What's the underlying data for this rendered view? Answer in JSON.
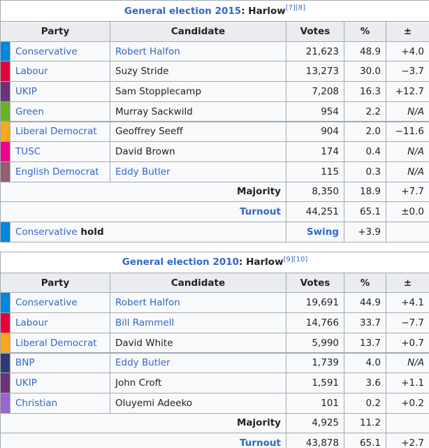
{
  "elections": [
    {
      "caption": {
        "link": "General election 2015",
        "place": ": Harlow",
        "refs": [
          "[7]",
          "[8]"
        ]
      },
      "headers": [
        "Party",
        "Candidate",
        "Votes",
        "%",
        "±"
      ],
      "rows": [
        {
          "party": "Conservative",
          "color": "#0087DC",
          "candidate": "Robert Halfon",
          "candidate_link": true,
          "votes": "21,623",
          "pct": "48.9",
          "change": "+4.0"
        },
        {
          "party": "Labour",
          "color": "#E4003B",
          "candidate": "Suzy Stride",
          "candidate_link": false,
          "votes": "13,273",
          "pct": "30.0",
          "change": "−3.7"
        },
        {
          "party": "UKIP",
          "color": "#6D3177",
          "candidate": "Sam Stopplecamp",
          "candidate_link": false,
          "votes": "7,208",
          "pct": "16.3",
          "change": "+12.7"
        },
        {
          "party": "Green",
          "color": "#6AB023",
          "candidate": "Murray Sackwild",
          "candidate_link": false,
          "votes": "954",
          "pct": "2.2",
          "change_na": "N/A"
        },
        {
          "party": "Liberal Democrat",
          "color": "#FAA61A",
          "candidate": "Geoffrey Seeff",
          "candidate_link": false,
          "votes": "904",
          "pct": "2.0",
          "change": "−11.6"
        },
        {
          "party": "TUSC",
          "color": "#EC008C",
          "candidate": "David Brown",
          "candidate_link": false,
          "votes": "174",
          "pct": "0.4",
          "change_na": "N/A"
        },
        {
          "party": "English Democrat",
          "color": "#915F6D",
          "candidate": "Eddy Butler",
          "candidate_link": true,
          "votes": "115",
          "pct": "0.3",
          "change_na": "N/A"
        }
      ],
      "majority": {
        "label": "Majority",
        "votes": "8,350",
        "pct": "18.9",
        "change": "+7.7"
      },
      "turnout": {
        "label": "Turnout",
        "votes": "44,251",
        "pct": "65.1",
        "change": "±0.0"
      },
      "result": {
        "party": "Conservative",
        "color": "#0087DC",
        "outcome": " hold",
        "swing_label": "Swing",
        "swing": "+3.9"
      }
    },
    {
      "caption": {
        "link": "General election 2010",
        "place": ": Harlow",
        "refs": [
          "[9]",
          "[10]"
        ]
      },
      "headers": [
        "Party",
        "Candidate",
        "Votes",
        "%",
        "±"
      ],
      "rows": [
        {
          "party": "Conservative",
          "color": "#0087DC",
          "candidate": "Robert Halfon",
          "candidate_link": true,
          "votes": "19,691",
          "pct": "44.9",
          "change": "+4.1"
        },
        {
          "party": "Labour",
          "color": "#E4003B",
          "candidate": "Bill Rammell",
          "candidate_link": true,
          "votes": "14,766",
          "pct": "33.7",
          "change": "−7.7"
        },
        {
          "party": "Liberal Democrat",
          "color": "#FAA61A",
          "candidate": "David White",
          "candidate_link": false,
          "votes": "5,990",
          "pct": "13.7",
          "change": "+0.7"
        },
        {
          "party": "BNP",
          "color": "#2E3B74",
          "candidate": "Eddy Butler",
          "candidate_link": true,
          "votes": "1,739",
          "pct": "4.0",
          "change_na": "N/A"
        },
        {
          "party": "UKIP",
          "color": "#6D3177",
          "candidate": "John Croft",
          "candidate_link": false,
          "votes": "1,591",
          "pct": "3.6",
          "change": "+1.1"
        },
        {
          "party": "Christian",
          "color": "#9966CC",
          "candidate": "Oluyemi Adeeko",
          "candidate_link": false,
          "votes": "101",
          "pct": "0.2",
          "change": "+0.2"
        }
      ],
      "majority": {
        "label": "Majority",
        "votes": "4,925",
        "pct": "11.2"
      },
      "turnout": {
        "label": "Turnout",
        "votes": "43,878",
        "pct": "65.1",
        "change": "+2.7"
      }
    }
  ]
}
